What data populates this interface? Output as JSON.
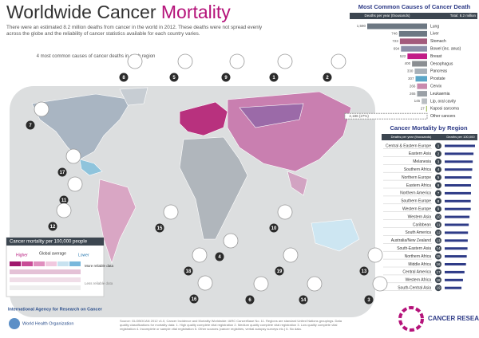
{
  "title_main": "Worldwide Cancer",
  "title_highlight": "Mortality",
  "subtitle": "There were an estimated 8.2 million deaths from cancer in the world in 2012. These deaths were not spread evenly across the globe and the reliability of cancer statistics available for each country varies.",
  "map_note": "4 most common causes of cancer deaths in each region",
  "causes": {
    "type": "bar",
    "title": "Most Common Causes of Cancer Death",
    "axis_label": "Deaths per year (thousands)",
    "total": "Total: 8.2 million",
    "color": "#7a8590",
    "categories": [
      "Lung",
      "Liver",
      "Stomach",
      "Bowel (inc. anus)",
      "Breast",
      "Oesophagus",
      "Pancreas",
      "Prostate",
      "Cervix",
      "Leukaemia",
      "Lip, oral cavity",
      "Kaposi sarcoma",
      "Other cancers"
    ],
    "values": [
      1590,
      746,
      723,
      694,
      522,
      400,
      330,
      307,
      266,
      265,
      145,
      27,
      2186
    ],
    "value_labels": [
      "1,590",
      "746",
      "723",
      "694",
      "522",
      "400",
      "330",
      "307",
      "266",
      "265",
      "145",
      "27",
      "2,186 (27%)"
    ],
    "colors": [
      "#6d7883",
      "#6d7883",
      "#a35a7c",
      "#8c8ea8",
      "#c21c87",
      "#8a8e92",
      "#a7b0b8",
      "#5aa6c8",
      "#c98aae",
      "#9aa0a6",
      "#b9bec2",
      "#a8c46a",
      "#ffffff"
    ]
  },
  "regions": {
    "type": "bar",
    "title": "Cancer Mortality by Region",
    "axis_label_left": "Deaths per year (thousands)",
    "axis_label_right": "Deaths per 100,000",
    "color": "#2e3b87",
    "numbers": [
      "1",
      "2",
      "3",
      "4",
      "5",
      "6",
      "7",
      "8",
      "9",
      "10",
      "11",
      "12",
      "13",
      "14",
      "15",
      "16",
      "17",
      "18",
      "19"
    ],
    "categories": [
      "Central & Eastern Europe",
      "Eastern Asia",
      "Melanesia",
      "Southern Africa",
      "Northern Europe",
      "Eastern Africa",
      "Northern America",
      "Southern Europe",
      "Western Europe",
      "Western Asia",
      "Caribbean",
      "South America",
      "Australia/New Zealand",
      "South-Eastern Asia",
      "Northern Africa",
      "Middle Africa",
      "Central America",
      "Western Africa",
      "South-Central Asia"
    ],
    "values": [
      121,
      115,
      112,
      110,
      107,
      105,
      105,
      104,
      104,
      99,
      96,
      93,
      92,
      91,
      88,
      85,
      79,
      73,
      67
    ]
  },
  "legend": {
    "title": "Cancer mortality per 100,000 people",
    "higher": "Higher",
    "average": "Global average",
    "lower": "Lower",
    "more": "More reliable data",
    "less": "Less reliable data"
  },
  "markers": [
    "8",
    "5",
    "9",
    "1",
    "2",
    "7",
    "17",
    "11",
    "12",
    "15",
    "4",
    "16",
    "6",
    "10",
    "18",
    "19",
    "14",
    "13",
    "3"
  ],
  "logos": {
    "iarc": "International Agency for Research on Cancer",
    "who": "World Health Organization",
    "cruk": "CANCER RESEARCH UK"
  },
  "source": "Source: GLOBOCAN 2012 v1.0, Cancer Incidence and Mortality Worldwide: IARC CancerBase No. 11. Regions are standard United Nations groupings. Data quality classifications for mortality data: 1. High quality complete vital registration 2. Medium quality complete vital registration 3. Low quality complete vital registration 4. Incomplete or sample vital registration 5. Other sources (cancer registries, verbal autopsy surveys etc.) 6. No data."
}
